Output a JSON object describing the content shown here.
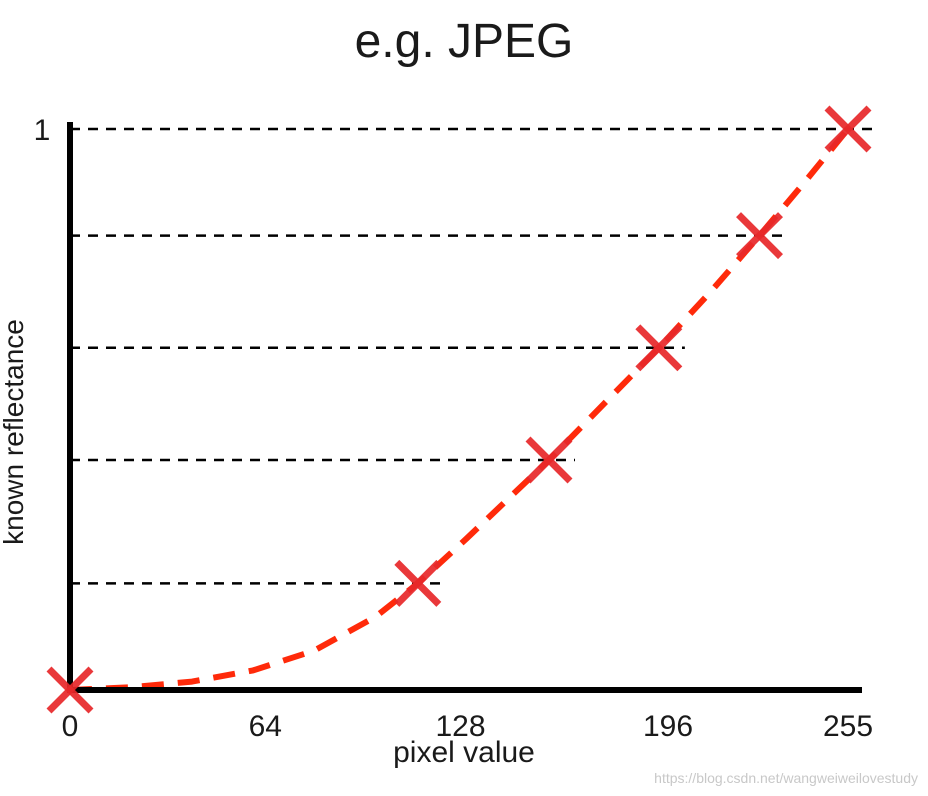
{
  "chart_data": {
    "type": "scatter",
    "title": "e.g. JPEG",
    "xlabel": "pixel value",
    "ylabel": "known reflectance",
    "x_ticks": [
      {
        "value": 0,
        "label": "0"
      },
      {
        "value": 64,
        "label": "64"
      },
      {
        "value": 128,
        "label": "128"
      },
      {
        "value": 196,
        "label": "196"
      },
      {
        "value": 255,
        "label": "255"
      }
    ],
    "y_ticks": [
      {
        "value": 1,
        "label": "1"
      }
    ],
    "xlim": [
      0,
      255
    ],
    "ylim": [
      0,
      1
    ],
    "points": [
      {
        "x": 0,
        "y": 0.0
      },
      {
        "x": 114,
        "y": 0.19
      },
      {
        "x": 157,
        "y": 0.41
      },
      {
        "x": 193,
        "y": 0.61
      },
      {
        "x": 226,
        "y": 0.81
      },
      {
        "x": 255,
        "y": 1.0
      }
    ],
    "reference_lines": {
      "style": "dashed",
      "color": "#000000",
      "y_values": [
        0.19,
        0.41,
        0.61,
        0.81,
        1.0
      ]
    },
    "fit_curve": {
      "style": "dashed",
      "color": "#ff2a0a",
      "x": [
        0,
        20,
        40,
        60,
        80,
        100,
        114,
        130,
        157,
        175,
        193,
        210,
        226,
        240,
        255
      ],
      "y": [
        0.0,
        0.005,
        0.015,
        0.035,
        0.07,
        0.13,
        0.19,
        0.27,
        0.41,
        0.51,
        0.61,
        0.71,
        0.81,
        0.9,
        1.0
      ]
    },
    "marker": {
      "shape": "x",
      "color": "#e8282a"
    },
    "grid": false,
    "legend": "none"
  },
  "watermark": "https://blog.csdn.net/wangweiweilovestudy"
}
